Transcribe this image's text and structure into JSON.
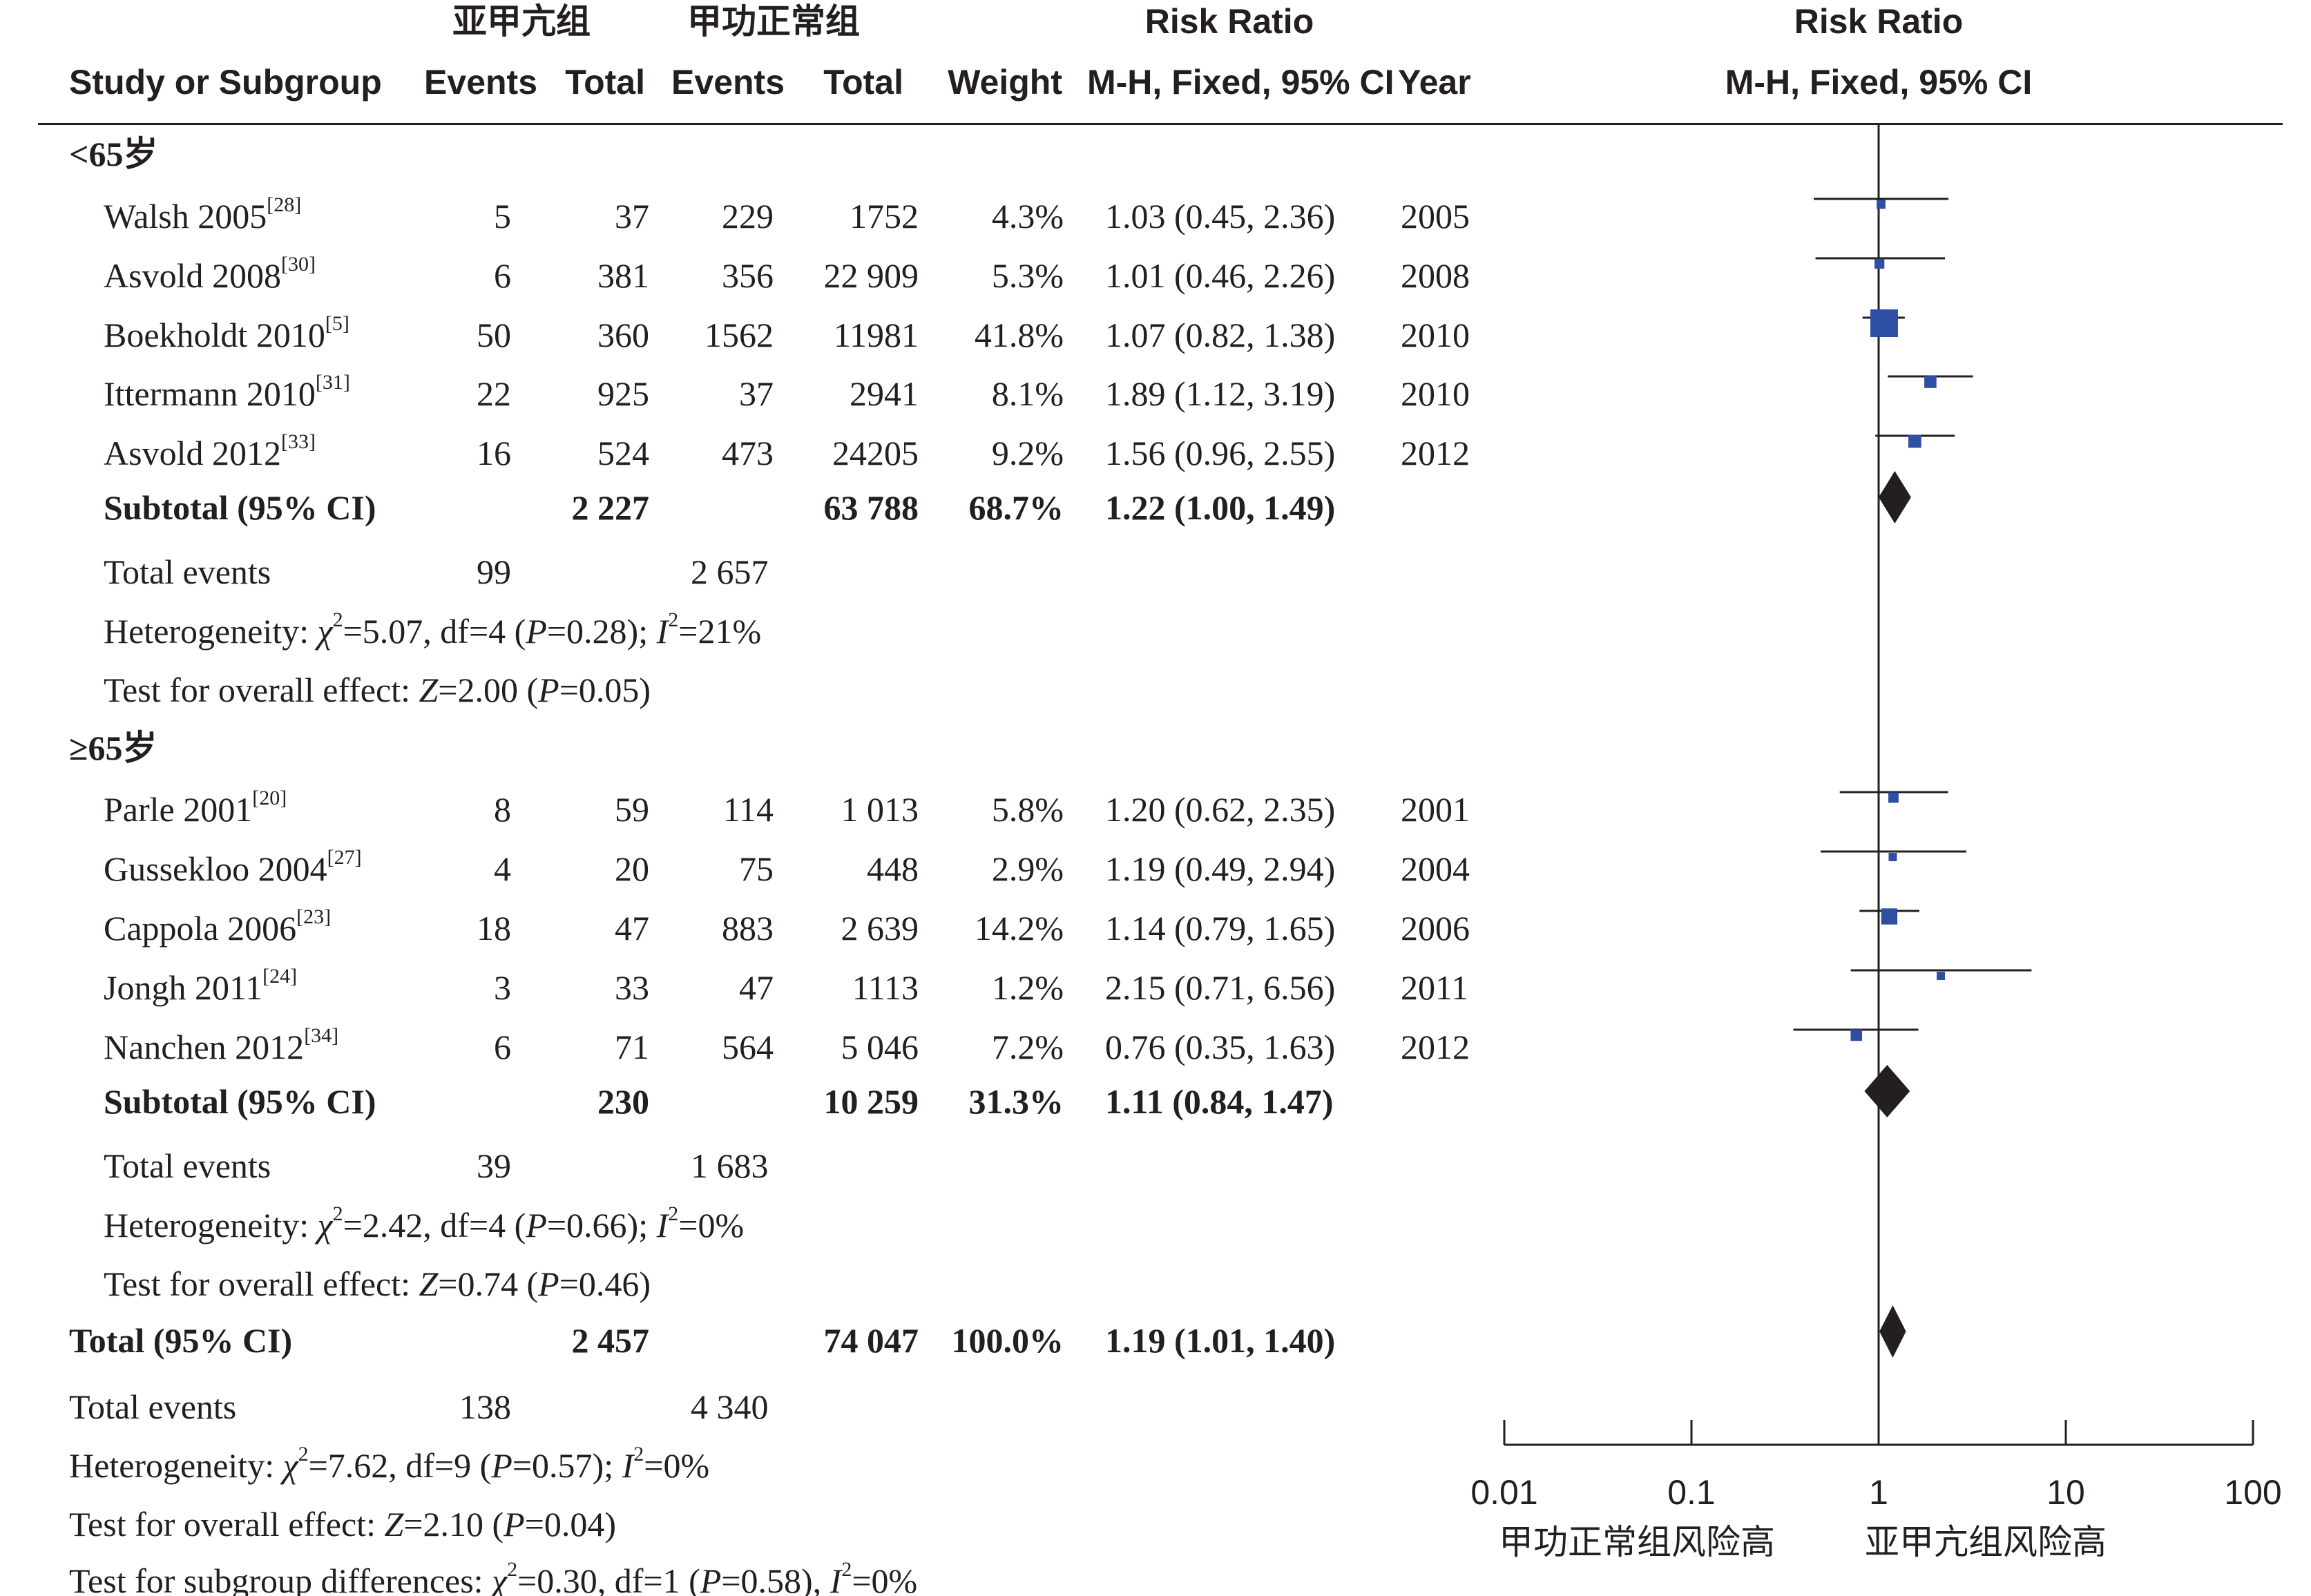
{
  "header": {
    "group1": "亚甲亢组",
    "group2": "甲功正常组",
    "rr_top": "Risk Ratio",
    "plot_top": "Risk Ratio",
    "study": "Study or Subgroup",
    "events1": "Events",
    "total1": "Total",
    "events2": "Events",
    "total2": "Total",
    "weight": "Weight",
    "ci": "M-H, Fixed, 95% CI",
    "year": "Year",
    "plot_ci": "M-H, Fixed, 95% CI"
  },
  "subgroups": [
    {
      "title": "<65岁",
      "studies": [
        {
          "name": "Walsh 2005",
          "ref": "[28]",
          "e1": "5",
          "t1": "37",
          "e2": "229",
          "t2": "1752",
          "weight": "4.3%",
          "ci": "1.03 (0.45, 2.36)",
          "year": "2005"
        },
        {
          "name": "Asvold 2008",
          "ref": "[30]",
          "e1": "6",
          "t1": "381",
          "e2": "356",
          "t2": "22 909",
          "weight": "5.3%",
          "ci": "1.01 (0.46, 2.26)",
          "year": "2008"
        },
        {
          "name": "Boekholdt 2010",
          "ref": "[5]",
          "e1": "50",
          "t1": "360",
          "e2": "1562",
          "t2": "11981",
          "weight": "41.8%",
          "ci": "1.07 (0.82, 1.38)",
          "year": "2010"
        },
        {
          "name": "Ittermann 2010",
          "ref": "[31]",
          "e1": "22",
          "t1": "925",
          "e2": "37",
          "t2": "2941",
          "weight": "8.1%",
          "ci": "1.89 (1.12, 3.19)",
          "year": "2010"
        },
        {
          "name": "Asvold 2012",
          "ref": "[33]",
          "e1": "16",
          "t1": "524",
          "e2": "473",
          "t2": "24205",
          "weight": "9.2%",
          "ci": "1.56 (0.96, 2.55)",
          "year": "2012"
        }
      ],
      "subtotal": {
        "label": "Subtotal (95% CI)",
        "t1": "2 227",
        "t2": "63 788",
        "weight": "68.7%",
        "ci": "1.22 (1.00, 1.49)"
      },
      "events": {
        "label": "Total events",
        "e1": "99",
        "e2": "2 657"
      },
      "het": {
        "prefix": "Heterogeneity: ",
        "chi": "χ",
        "mid": "=5.07, df=4 (",
        "p": "P",
        "end": "=0.28); ",
        "i": "I",
        "tail": "=21%"
      },
      "overall": {
        "prefix": "Test for overall effect: ",
        "z": "Z",
        "mid": "=2.00 (",
        "p": "P",
        "end": "=0.05)"
      }
    },
    {
      "title": "≥65岁",
      "studies": [
        {
          "name": "Parle 2001",
          "ref": "[20]",
          "e1": "8",
          "t1": "59",
          "e2": "114",
          "t2": "1 013",
          "weight": "5.8%",
          "ci": "1.20 (0.62, 2.35)",
          "year": "2001"
        },
        {
          "name": "Gussekloo 2004",
          "ref": "[27]",
          "e1": "4",
          "t1": "20",
          "e2": "75",
          "t2": "448",
          "weight": "2.9%",
          "ci": "1.19 (0.49, 2.94)",
          "year": "2004"
        },
        {
          "name": "Cappola 2006",
          "ref": "[23]",
          "e1": "18",
          "t1": "47",
          "e2": "883",
          "t2": "2 639",
          "weight": "14.2%",
          "ci": "1.14 (0.79, 1.65)",
          "year": "2006"
        },
        {
          "name": "Jongh 2011",
          "ref": "[24]",
          "e1": "3",
          "t1": "33",
          "e2": "47",
          "t2": "1113",
          "weight": "1.2%",
          "ci": "2.15 (0.71, 6.56)",
          "year": "2011"
        },
        {
          "name": "Nanchen 2012",
          "ref": "[34]",
          "e1": "6",
          "t1": "71",
          "e2": "564",
          "t2": "5 046",
          "weight": "7.2%",
          "ci": "0.76 (0.35, 1.63)",
          "year": "2012"
        }
      ],
      "subtotal": {
        "label": "Subtotal (95% CI)",
        "t1": "230",
        "t2": "10 259",
        "weight": "31.3%",
        "ci": "1.11 (0.84, 1.47)"
      },
      "events": {
        "label": "Total events",
        "e1": "39",
        "e2": "1 683"
      },
      "het": {
        "prefix": "Heterogeneity: ",
        "chi": "χ",
        "mid": "=2.42, df=4 (",
        "p": "P",
        "end": "=0.66); ",
        "i": "I",
        "tail": "=0%"
      },
      "overall": {
        "prefix": "Test for overall effect: ",
        "z": "Z",
        "mid": "=0.74 (",
        "p": "P",
        "end": "=0.46)"
      }
    }
  ],
  "total": {
    "label": "Total (95% CI)",
    "t1": "2 457",
    "t2": "74 047",
    "weight": "100.0%",
    "ci": "1.19 (1.01, 1.40)"
  },
  "total_events": {
    "label": "Total events",
    "e1": "138",
    "e2": "4 340"
  },
  "total_het": {
    "prefix": "Heterogeneity: ",
    "chi": "χ",
    "mid": "=7.62, df=9 (",
    "p": "P",
    "end": "=0.57); ",
    "i": "I",
    "tail": "=0%"
  },
  "total_overall": {
    "prefix": "Test for overall effect: ",
    "z": "Z",
    "mid": "=2.10 (",
    "p": "P",
    "end": "=0.04)"
  },
  "subgroup_diff": {
    "prefix": "Test for subgroup differences: ",
    "chi": "χ",
    "mid": "=0.30, df=1 (",
    "p": "P",
    "end": "=0.58), ",
    "i": "I",
    "tail": "=0%"
  },
  "axis": {
    "ticks": [
      "0.01",
      "0.1",
      "1",
      "10",
      "100"
    ],
    "left_label": "甲功正常组风险高",
    "right_label": "亚甲亢组风险高"
  },
  "colors": {
    "square": "#2e4fa3",
    "diamond": "#231f20",
    "line": "#231f20"
  },
  "chart_data": {
    "type": "forest",
    "scale": "log",
    "xlim": [
      0.01,
      100
    ],
    "series": [
      {
        "name": "<65岁",
        "points": [
          {
            "study": "Walsh 2005",
            "rr": 1.03,
            "lo": 0.45,
            "hi": 2.36,
            "weight": 4.3
          },
          {
            "study": "Asvold 2008",
            "rr": 1.01,
            "lo": 0.46,
            "hi": 2.26,
            "weight": 5.3
          },
          {
            "study": "Boekholdt 2010",
            "rr": 1.07,
            "lo": 0.82,
            "hi": 1.38,
            "weight": 41.8
          },
          {
            "study": "Ittermann 2010",
            "rr": 1.89,
            "lo": 1.12,
            "hi": 3.19,
            "weight": 8.1
          },
          {
            "study": "Asvold 2012",
            "rr": 1.56,
            "lo": 0.96,
            "hi": 2.55,
            "weight": 9.2
          }
        ],
        "subtotal": {
          "rr": 1.22,
          "lo": 1.0,
          "hi": 1.49
        }
      },
      {
        "name": "≥65岁",
        "points": [
          {
            "study": "Parle 2001",
            "rr": 1.2,
            "lo": 0.62,
            "hi": 2.35,
            "weight": 5.8
          },
          {
            "study": "Gussekloo 2004",
            "rr": 1.19,
            "lo": 0.49,
            "hi": 2.94,
            "weight": 2.9
          },
          {
            "study": "Cappola 2006",
            "rr": 1.14,
            "lo": 0.79,
            "hi": 1.65,
            "weight": 14.2
          },
          {
            "study": "Jongh 2011",
            "rr": 2.15,
            "lo": 0.71,
            "hi": 6.56,
            "weight": 1.2
          },
          {
            "study": "Nanchen 2012",
            "rr": 0.76,
            "lo": 0.35,
            "hi": 1.63,
            "weight": 7.2
          }
        ],
        "subtotal": {
          "rr": 1.11,
          "lo": 0.84,
          "hi": 1.47
        }
      }
    ],
    "total": {
      "rr": 1.19,
      "lo": 1.01,
      "hi": 1.4
    }
  }
}
